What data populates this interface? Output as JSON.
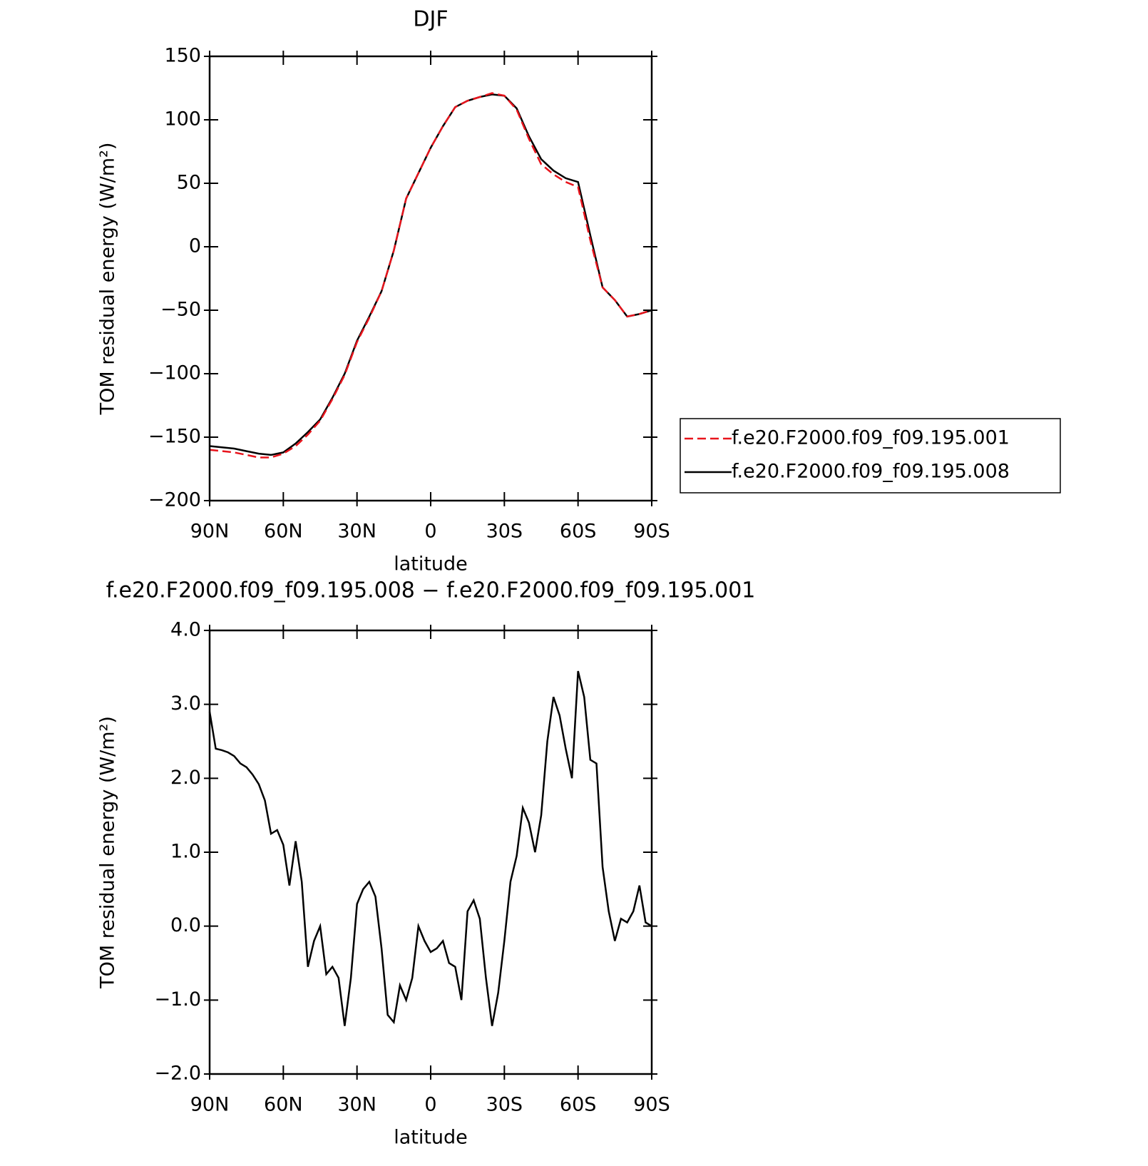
{
  "chart_data": [
    {
      "type": "line",
      "title": "DJF",
      "xlabel": "latitude",
      "ylabel": "TOM residual energy (W/m²)",
      "xlim": [
        90,
        -90
      ],
      "xticks": [
        {
          "value": 90,
          "label": "90N"
        },
        {
          "value": 60,
          "label": "60N"
        },
        {
          "value": 30,
          "label": "30N"
        },
        0,
        {
          "value": -30,
          "label": "30S"
        },
        {
          "value": -60,
          "label": "60S"
        },
        {
          "value": -90,
          "label": "90S"
        }
      ],
      "ylim": [
        -200,
        150
      ],
      "yticks": [
        {
          "value": -200,
          "label": "−200"
        },
        {
          "value": -150,
          "label": "−150"
        },
        {
          "value": -100,
          "label": "−100"
        },
        {
          "value": -50,
          "label": "−50"
        },
        0,
        50,
        100,
        150
      ],
      "legend": "right",
      "x": [
        90,
        85,
        80,
        75,
        70,
        65,
        60,
        55,
        50,
        45,
        40,
        35,
        30,
        25,
        20,
        15,
        10,
        5,
        0,
        -5,
        -10,
        -15,
        -20,
        -25,
        -30,
        -35,
        -40,
        -45,
        -50,
        -55,
        -60,
        -65,
        -70,
        -75,
        -80,
        -85,
        -90
      ],
      "series": [
        {
          "name": "f.e20.F2000.f09_f09.195.001",
          "color": "#e8141c",
          "dash": true,
          "values": [
            -160,
            -161,
            -162,
            -164,
            -166,
            -166,
            -163,
            -157,
            -148,
            -137,
            -120,
            -101,
            -75,
            -56,
            -35,
            -3,
            38,
            58,
            78,
            95,
            110,
            115,
            118,
            121,
            119,
            108,
            85,
            65,
            57,
            51,
            47,
            5,
            -32,
            -42,
            -55,
            -53,
            -50
          ]
        },
        {
          "name": "f.e20.F2000.f09_f09.195.008",
          "color": "#000000",
          "dash": false,
          "values": [
            -157,
            -158,
            -159,
            -161,
            -163,
            -164,
            -162,
            -155,
            -146,
            -136,
            -119,
            -100,
            -74,
            -55,
            -35,
            -3,
            38,
            58,
            78,
            95,
            110,
            115,
            118,
            120,
            119,
            109,
            87,
            69,
            60,
            54,
            51,
            9,
            -32,
            -42,
            -55,
            -53,
            -50
          ]
        }
      ]
    },
    {
      "type": "line",
      "title": "f.e20.F2000.f09_f09.195.008 − f.e20.F2000.f09_f09.195.001",
      "xlabel": "latitude",
      "ylabel": "TOM residual energy (W/m²)",
      "xlim": [
        90,
        -90
      ],
      "xticks": [
        {
          "value": 90,
          "label": "90N"
        },
        {
          "value": 60,
          "label": "60N"
        },
        {
          "value": 30,
          "label": "30N"
        },
        0,
        {
          "value": -30,
          "label": "30S"
        },
        {
          "value": -60,
          "label": "60S"
        },
        {
          "value": -90,
          "label": "90S"
        }
      ],
      "ylim": [
        -2,
        4
      ],
      "yticks": [
        {
          "value": -2,
          "label": "−2.0"
        },
        {
          "value": -1,
          "label": "−1.0"
        },
        {
          "value": 0,
          "label": "0.0"
        },
        {
          "value": 1,
          "label": "1.0"
        },
        {
          "value": 2,
          "label": "2.0"
        },
        {
          "value": 3,
          "label": "3.0"
        },
        {
          "value": 4,
          "label": "4.0"
        }
      ],
      "color": "#000000",
      "x": [
        90,
        87.5,
        85,
        82.5,
        80,
        77.5,
        75,
        72.5,
        70,
        67.5,
        65,
        62.5,
        60,
        57.5,
        55,
        52.5,
        50,
        47.5,
        45,
        42.5,
        40,
        37.5,
        35,
        32.5,
        30,
        27.5,
        25,
        22.5,
        20,
        17.5,
        15,
        12.5,
        10,
        7.5,
        5,
        2.5,
        0,
        -2.5,
        -5,
        -7.5,
        -10,
        -12.5,
        -15,
        -17.5,
        -20,
        -22.5,
        -25,
        -27.5,
        -30,
        -32.5,
        -35,
        -37.5,
        -40,
        -42.5,
        -45,
        -47.5,
        -50,
        -52.5,
        -55,
        -57.5,
        -60,
        -62.5,
        -65,
        -67.5,
        -70,
        -72.5,
        -75,
        -77.5,
        -80,
        -82.5,
        -85,
        -87.5,
        -90
      ],
      "values": [
        2.9,
        2.4,
        2.38,
        2.35,
        2.3,
        2.2,
        2.15,
        2.05,
        1.92,
        1.7,
        1.25,
        1.3,
        1.1,
        0.55,
        1.15,
        0.6,
        -0.55,
        -0.2,
        0.0,
        -0.65,
        -0.55,
        -0.7,
        -1.35,
        -0.7,
        0.3,
        0.5,
        0.6,
        0.4,
        -0.3,
        -1.2,
        -1.3,
        -0.8,
        -1.0,
        -0.7,
        0.0,
        -0.2,
        -0.35,
        -0.3,
        -0.2,
        -0.5,
        -0.55,
        -1.0,
        0.2,
        0.35,
        0.1,
        -0.7,
        -1.35,
        -0.9,
        -0.2,
        0.6,
        0.95,
        1.6,
        1.4,
        1.0,
        1.5,
        2.5,
        3.1,
        2.85,
        2.4,
        2.0,
        3.45,
        3.1,
        2.25,
        2.2,
        0.8,
        0.2,
        -0.2,
        0.1,
        0.05,
        0.2,
        0.55,
        0.05,
        0.0
      ]
    }
  ]
}
